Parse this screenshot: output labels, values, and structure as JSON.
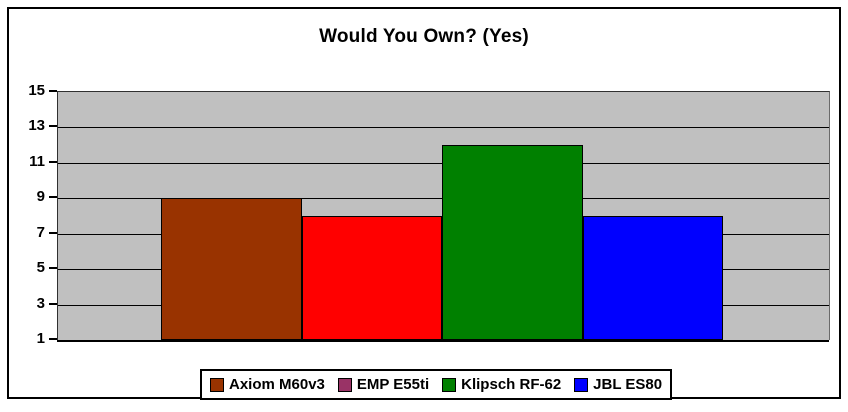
{
  "chart_data": {
    "type": "bar",
    "title": "Would You Own? (Yes)",
    "categories": [
      "Axiom M60v3",
      "EMP E55ti",
      "Klipsch RF-62",
      "JBL ES80"
    ],
    "values": [
      9,
      8,
      12,
      8
    ],
    "series": [
      {
        "name": "Axiom M60v3",
        "value": 9,
        "bar_color": "#993300",
        "legend_color": "#993300"
      },
      {
        "name": "EMP E55ti",
        "value": 8,
        "bar_color": "#ff0000",
        "legend_color": "#993366"
      },
      {
        "name": "Klipsch RF-62",
        "value": 12,
        "bar_color": "#008000",
        "legend_color": "#008000"
      },
      {
        "name": "JBL ES80",
        "value": 8,
        "bar_color": "#0000ff",
        "legend_color": "#0000ff"
      }
    ],
    "xlabel": "",
    "ylabel": "",
    "ylim": [
      1,
      15
    ],
    "yticks": [
      15,
      13,
      11,
      9,
      7,
      5,
      3,
      1
    ],
    "grid": true,
    "legend_position": "bottom",
    "plot_bg_color": "#c0c0c0",
    "gridline_color": "#000000",
    "frame_border_color": "#000000"
  }
}
